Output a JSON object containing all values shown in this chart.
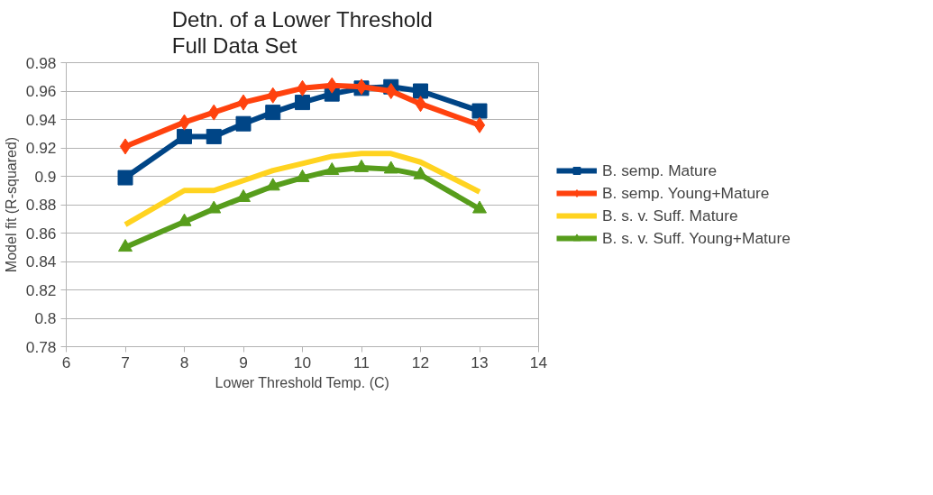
{
  "chart_data": {
    "type": "line",
    "title": "Detn. of a Lower Threshold\nFull Data Set",
    "xlabel": "Lower Threshold Temp. (C)",
    "ylabel": "Model fit (R-squared)",
    "x": [
      7,
      8,
      8.5,
      9,
      9.5,
      10,
      10.5,
      11,
      11.5,
      12,
      13
    ],
    "series": [
      {
        "name": "B. semp. Mature",
        "color": "#004586",
        "marker": "square",
        "values": [
          0.899,
          0.928,
          0.928,
          0.937,
          0.945,
          0.952,
          0.958,
          0.962,
          0.963,
          0.96,
          0.946
        ]
      },
      {
        "name": "B. semp. Young+Mature",
        "color": "#ff420e",
        "marker": "diamond",
        "values": [
          0.921,
          0.938,
          0.945,
          0.952,
          0.957,
          0.962,
          0.964,
          0.963,
          0.96,
          0.951,
          0.936
        ]
      },
      {
        "name": "B. s. v. Suff. Mature",
        "color": "#ffd320",
        "marker": "none",
        "values": [
          0.866,
          0.89,
          0.89,
          0.897,
          0.904,
          0.909,
          0.914,
          0.916,
          0.916,
          0.91,
          0.889
        ]
      },
      {
        "name": "B. s. v. Suff. Young+Mature",
        "color": "#579d1c",
        "marker": "triangle",
        "values": [
          0.85,
          0.868,
          0.877,
          0.885,
          0.893,
          0.899,
          0.904,
          0.906,
          0.905,
          0.901,
          0.877
        ]
      }
    ],
    "xlim": [
      6,
      14
    ],
    "xticks": [
      6,
      7,
      8,
      9,
      10,
      11,
      12,
      13,
      14
    ],
    "ylim": [
      0.78,
      0.98
    ],
    "yticks": [
      0.78,
      0.8,
      0.82,
      0.84,
      0.86,
      0.88,
      0.9,
      0.92,
      0.94,
      0.96,
      0.98
    ],
    "grid": "y",
    "legend": "right",
    "line_style": "solid"
  }
}
